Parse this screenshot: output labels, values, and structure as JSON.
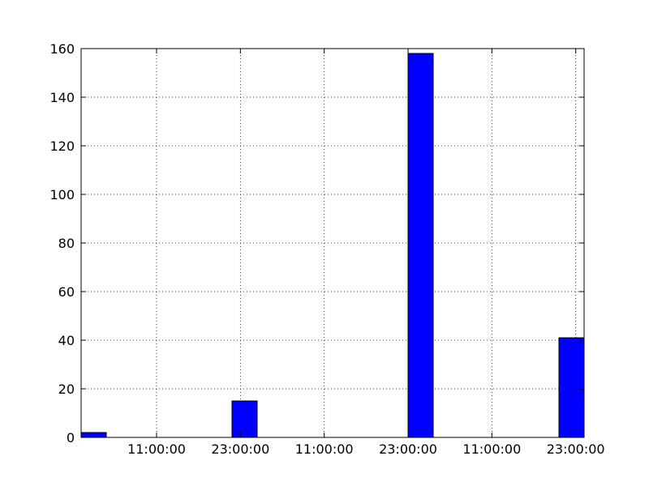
{
  "chart_data": {
    "type": "bar",
    "title": "",
    "xlabel": "",
    "ylabel": "",
    "bar_color": "#0000ff",
    "edge_color": "#000000",
    "grid": true,
    "legend": false,
    "ylim": [
      0,
      160
    ],
    "yticks": [
      0,
      20,
      40,
      60,
      80,
      100,
      120,
      140,
      160
    ],
    "xlim": [
      0,
      60
    ],
    "xticks": [
      {
        "x": 9,
        "label": "11:00:00"
      },
      {
        "x": 19,
        "label": "23:00:00"
      },
      {
        "x": 29,
        "label": "11:00:00"
      },
      {
        "x": 39,
        "label": "23:00:00"
      },
      {
        "x": 49,
        "label": "11:00:00"
      },
      {
        "x": 59,
        "label": "23:00:00"
      }
    ],
    "bars": [
      {
        "x": 0,
        "width": 3,
        "value": 2
      },
      {
        "x": 18,
        "width": 3,
        "value": 15
      },
      {
        "x": 39,
        "width": 3,
        "value": 158
      },
      {
        "x": 57,
        "width": 3,
        "value": 41
      }
    ]
  }
}
